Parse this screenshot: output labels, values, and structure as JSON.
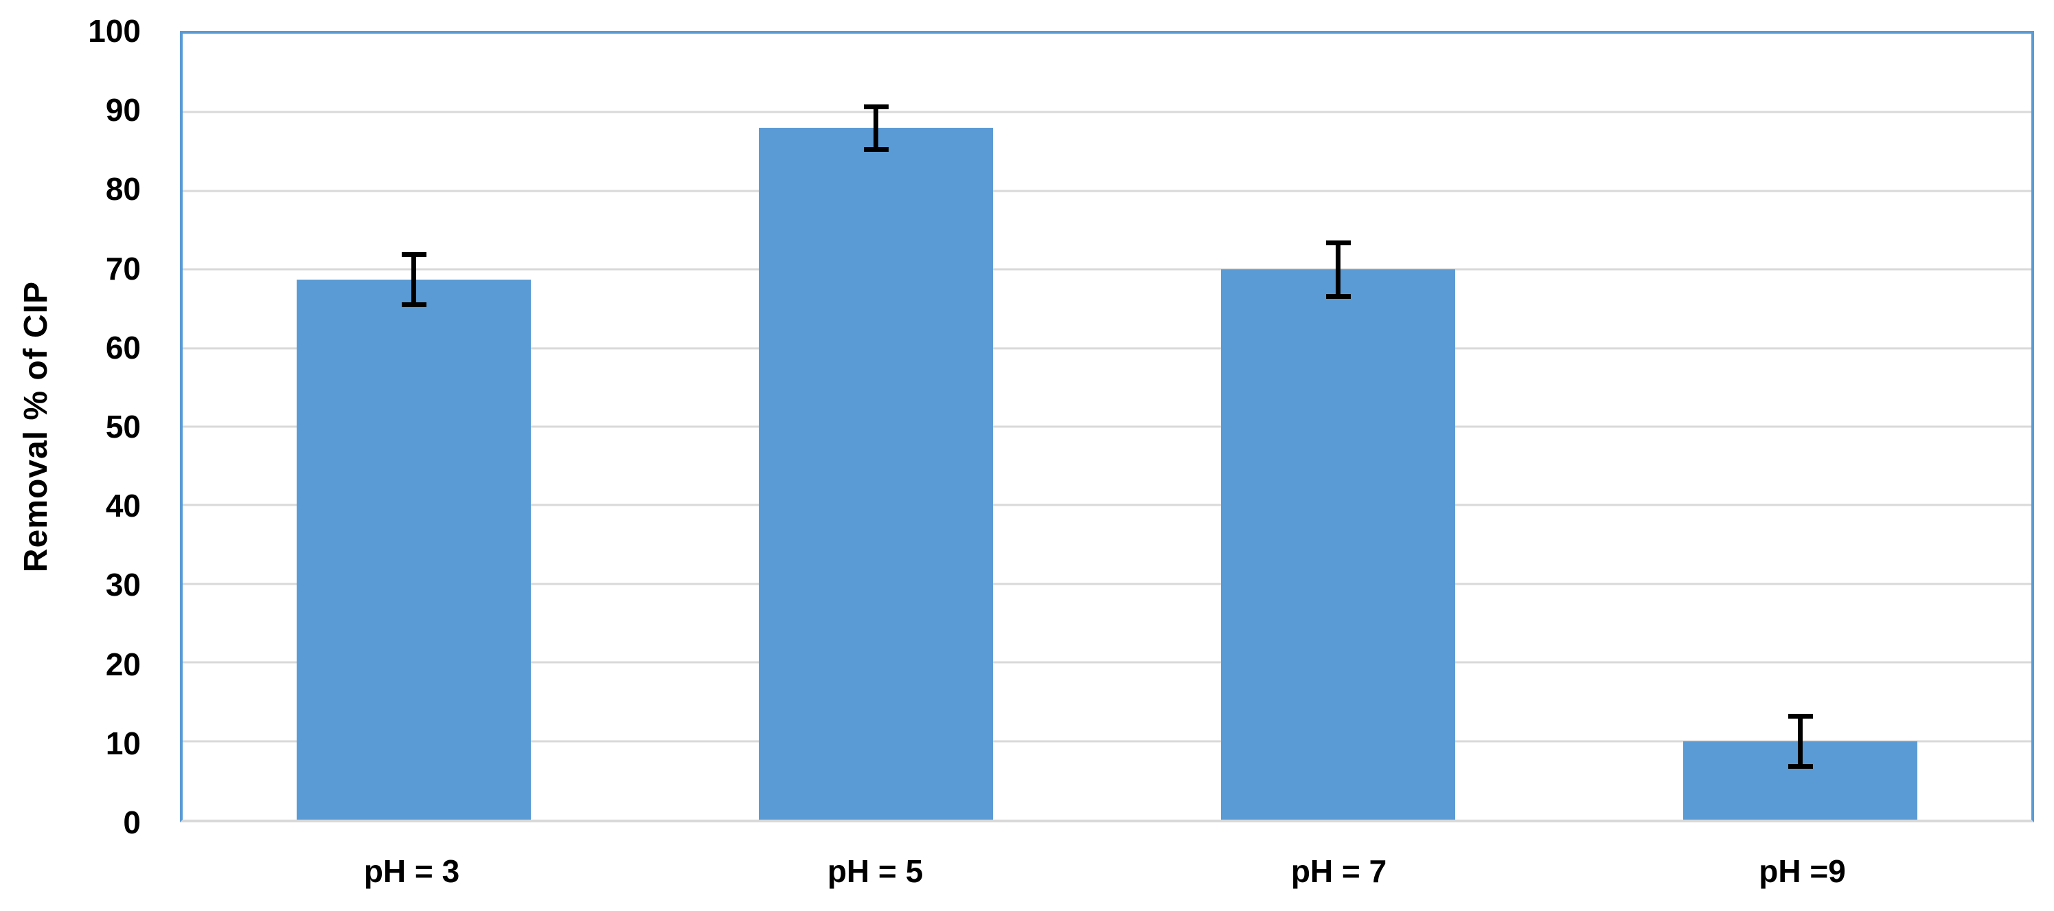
{
  "chart_data": {
    "type": "bar",
    "categories": [
      "pH = 3",
      "pH = 5",
      "pH = 7",
      "pH =9"
    ],
    "values": [
      68.7,
      88,
      70,
      10
    ],
    "error_bars": [
      3.5,
      3.0,
      3.7,
      3.5
    ],
    "xlabel": "",
    "ylabel": "Removal % of CIP",
    "ylim": [
      0,
      100
    ],
    "yticks": [
      0,
      10,
      20,
      30,
      40,
      50,
      60,
      70,
      80,
      90,
      100
    ],
    "grid": true,
    "legend": "none",
    "colors": {
      "bar": "#5B9BD5",
      "plot_border": "#5B9BD5",
      "gridline": "#D9D9D9",
      "axis_line": "#D9D9D9",
      "error_bar": "#000000",
      "text": "#000000"
    }
  }
}
